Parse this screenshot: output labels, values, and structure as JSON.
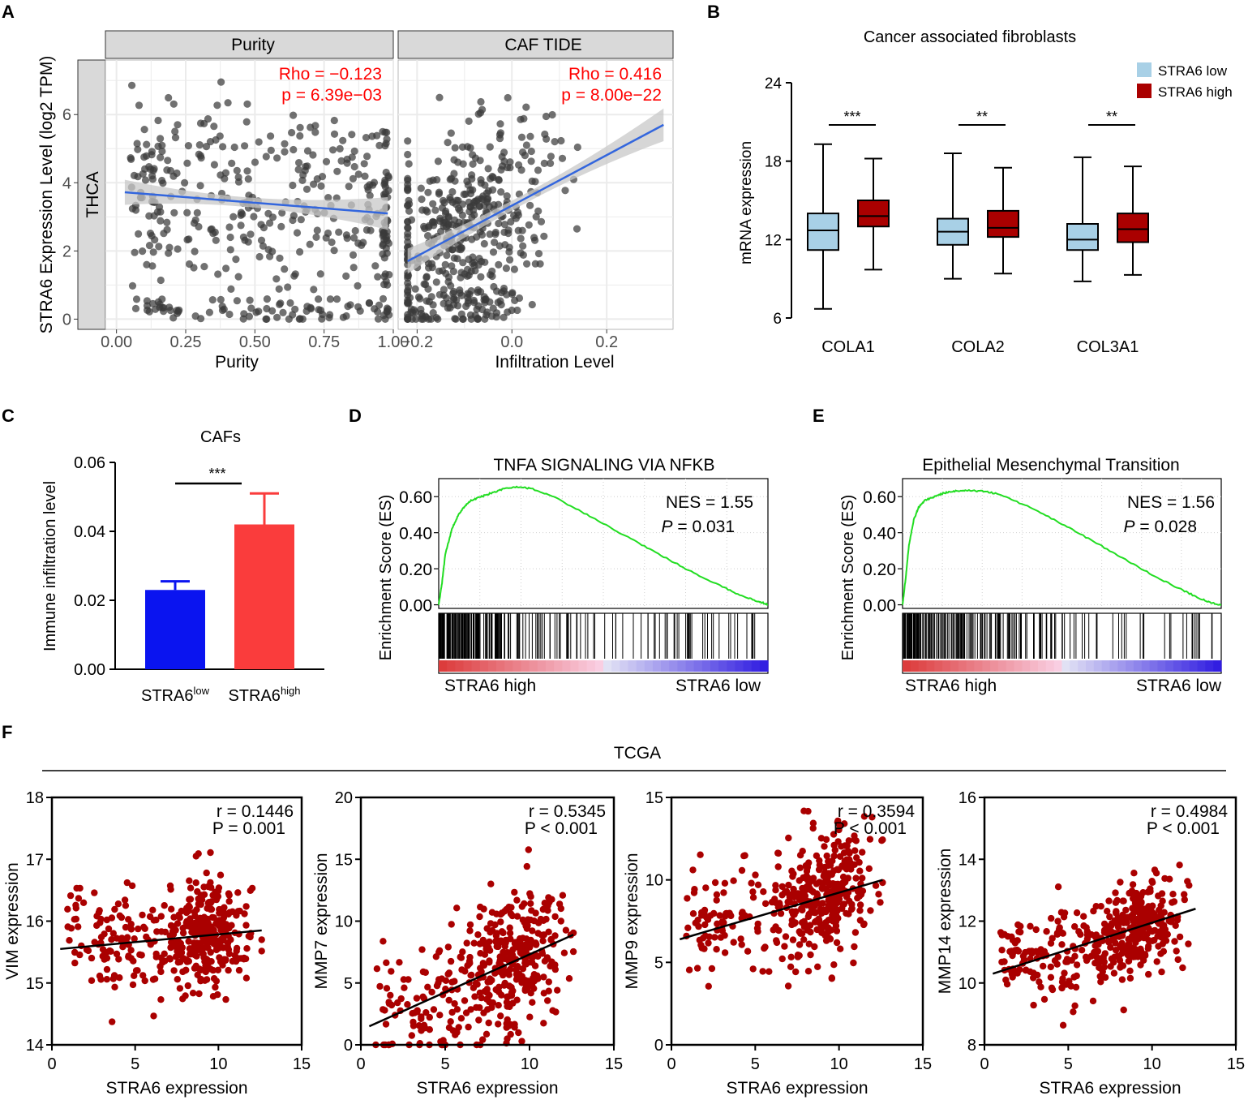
{
  "panel_labels": {
    "a": "A",
    "b": "B",
    "c": "C",
    "d": "D",
    "e": "E",
    "f": "F"
  },
  "colors": {
    "point": "#3a3a3a",
    "fit_line": "#3366dd",
    "ci_band": "#c8c8c8",
    "strip_bg": "#d9d9d9",
    "grid": "#ebebeb",
    "annot_red": "#ff0000",
    "box_low": "#a8d0e6",
    "box_high": "#aa0000",
    "bar_low": "#0a14f0",
    "bar_high": "#fa3c3c",
    "gsea_curve": "#22dd22",
    "f_point": "#aa0000"
  },
  "chart_data": [
    {
      "id": "A1",
      "type": "scatter",
      "strip_title": "Purity",
      "row_strip": "THCA",
      "ylabel": "STRA6 Expression Level (log2 TPM)",
      "xlabel": "Purity",
      "xlim": [
        -0.04,
        1.0
      ],
      "ylim": [
        -0.3,
        7.6
      ],
      "xticks": [
        0,
        0.25,
        0.5,
        0.75,
        1.0
      ],
      "xtick_labels": [
        "0.00",
        "0.25",
        "0.50",
        "0.75",
        "1.00"
      ],
      "yticks": [
        0,
        2,
        4,
        6
      ],
      "ytick_labels": [
        "0",
        "2",
        "4",
        "6"
      ],
      "annotation": [
        "Rho = −0.123",
        "p = 6.39e−03"
      ],
      "fit": {
        "x0": 0.03,
        "y0": 3.72,
        "x1": 0.98,
        "y1": 3.1
      },
      "gen": {
        "n": 430,
        "seed": 11,
        "kind": "purity"
      }
    },
    {
      "id": "A2",
      "type": "scatter",
      "strip_title": "CAF TIDE",
      "xlabel": "Infiltration Level",
      "xlim": [
        -0.24,
        0.34
      ],
      "ylim": [
        -0.3,
        7.6
      ],
      "xticks": [
        -0.2,
        0,
        0.2
      ],
      "xtick_labels": [
        "−0.2",
        "0.0",
        "0.2"
      ],
      "annotation": [
        "Rho = 0.416",
        "p = 8.00e−22"
      ],
      "fit": {
        "x0": -0.22,
        "y0": 1.7,
        "x1": 0.32,
        "y1": 5.7
      },
      "gen": {
        "n": 470,
        "seed": 23,
        "kind": "caf"
      }
    },
    {
      "id": "B",
      "type": "box",
      "title": "Cancer associated fibroblasts",
      "ylabel": "mRNA expression",
      "ylim": [
        6,
        24
      ],
      "yticks": [
        6,
        12,
        18,
        24
      ],
      "ytick_labels": [
        "6",
        "12",
        "18",
        "24"
      ],
      "categories": [
        "COLA1",
        "COLA2",
        "COL3A1"
      ],
      "legend": [
        "STRA6 low",
        "STRA6 high"
      ],
      "significance": [
        "***",
        "**",
        "**"
      ],
      "boxes": [
        {
          "low": {
            "min": 6.7,
            "q1": 11.2,
            "med": 12.7,
            "q3": 14.0,
            "max": 19.3
          },
          "high": {
            "min": 9.7,
            "q1": 13.0,
            "med": 13.8,
            "q3": 15.0,
            "max": 18.2
          }
        },
        {
          "low": {
            "min": 9.0,
            "q1": 11.6,
            "med": 12.6,
            "q3": 13.6,
            "max": 18.6
          },
          "high": {
            "min": 9.4,
            "q1": 12.2,
            "med": 12.9,
            "q3": 14.2,
            "max": 17.5
          }
        },
        {
          "low": {
            "min": 8.8,
            "q1": 11.2,
            "med": 12.0,
            "q3": 13.2,
            "max": 18.3
          },
          "high": {
            "min": 9.3,
            "q1": 11.8,
            "med": 12.8,
            "q3": 14.0,
            "max": 17.6
          }
        }
      ]
    },
    {
      "id": "C",
      "type": "bar",
      "title": "CAFs",
      "ylabel": "Immune infiltration level",
      "ylim": [
        0,
        0.06
      ],
      "yticks": [
        0,
        0.02,
        0.04,
        0.06
      ],
      "ytick_labels": [
        "0.00",
        "0.02",
        "0.04",
        "0.06"
      ],
      "categories": [
        {
          "base": "STRA6",
          "sup": "low"
        },
        {
          "base": "STRA6",
          "sup": "high"
        }
      ],
      "values": [
        0.023,
        0.042
      ],
      "errors": [
        0.0025,
        0.009
      ],
      "significance": "***"
    },
    {
      "id": "D",
      "type": "line",
      "title": "TNFA SIGNALING VIA NFKB",
      "ylabel": "Enrichment Score (ES)",
      "ylim": [
        -0.02,
        0.7
      ],
      "yticks": [
        0,
        0.2,
        0.4,
        0.6
      ],
      "ytick_labels": [
        "0.00",
        "0.20",
        "0.40",
        "0.60"
      ],
      "nes_label": "NES = 1.55",
      "p_label": "P",
      "p_value": " = 0.031",
      "left_label": "STRA6 high",
      "right_label": "STRA6 low",
      "curve": [
        [
          0,
          0
        ],
        [
          0.01,
          0.12
        ],
        [
          0.02,
          0.28
        ],
        [
          0.04,
          0.42
        ],
        [
          0.06,
          0.5
        ],
        [
          0.08,
          0.55
        ],
        [
          0.1,
          0.58
        ],
        [
          0.13,
          0.6
        ],
        [
          0.16,
          0.62
        ],
        [
          0.2,
          0.645
        ],
        [
          0.24,
          0.655
        ],
        [
          0.28,
          0.645
        ],
        [
          0.35,
          0.6
        ],
        [
          0.45,
          0.5
        ],
        [
          0.55,
          0.4
        ],
        [
          0.65,
          0.3
        ],
        [
          0.75,
          0.2
        ],
        [
          0.85,
          0.11
        ],
        [
          0.92,
          0.05
        ],
        [
          0.97,
          0.02
        ],
        [
          1.0,
          0.0
        ]
      ],
      "hits_seed": 5
    },
    {
      "id": "E",
      "type": "line",
      "title": "Epithelial Mesenchymal Transition",
      "ylabel": "Enrichment Score (ES)",
      "ylim": [
        -0.02,
        0.7
      ],
      "yticks": [
        0,
        0.2,
        0.4,
        0.6
      ],
      "ytick_labels": [
        "0.00",
        "0.20",
        "0.40",
        "0.60"
      ],
      "nes_label": "NES = 1.56",
      "p_label": "P",
      "p_value": " = 0.028",
      "left_label": "STRA6 high",
      "right_label": "STRA6 low",
      "curve": [
        [
          0,
          0
        ],
        [
          0.01,
          0.15
        ],
        [
          0.02,
          0.33
        ],
        [
          0.035,
          0.47
        ],
        [
          0.05,
          0.54
        ],
        [
          0.07,
          0.58
        ],
        [
          0.1,
          0.6
        ],
        [
          0.13,
          0.62
        ],
        [
          0.16,
          0.63
        ],
        [
          0.2,
          0.635
        ],
        [
          0.25,
          0.63
        ],
        [
          0.3,
          0.615
        ],
        [
          0.4,
          0.54
        ],
        [
          0.5,
          0.45
        ],
        [
          0.6,
          0.35
        ],
        [
          0.7,
          0.25
        ],
        [
          0.8,
          0.15
        ],
        [
          0.88,
          0.08
        ],
        [
          0.94,
          0.03
        ],
        [
          0.97,
          0.01
        ],
        [
          1.0,
          0.0
        ]
      ],
      "hits_seed": 9
    },
    {
      "id": "F1",
      "type": "scatter",
      "group_title": "TCGA",
      "xlabel": "STRA6 expression",
      "ylabel": "VIM expression",
      "xlim": [
        0,
        15
      ],
      "ylim": [
        14,
        18
      ],
      "xticks": [
        0,
        5,
        10,
        15
      ],
      "yticks": [
        14,
        15,
        16,
        17,
        18
      ],
      "r_label": "r = 0.1446",
      "p_label": "P = 0.001",
      "fit": {
        "x0": 0.5,
        "y0": 15.55,
        "x1": 12.6,
        "y1": 15.85
      },
      "gen": {
        "n": 420,
        "seed": 31,
        "slope": 0.025,
        "icpt": 15.55,
        "sd": 0.45
      }
    },
    {
      "id": "F2",
      "type": "scatter",
      "xlabel": "STRA6 expression",
      "ylabel": "MMP7 expression",
      "xlim": [
        0,
        15
      ],
      "ylim": [
        0,
        20
      ],
      "xticks": [
        0,
        5,
        10,
        15
      ],
      "yticks": [
        0,
        5,
        10,
        15,
        20
      ],
      "r_label": "r = 0.5345",
      "p_label": "P < 0.001",
      "fit": {
        "x0": 0.5,
        "y0": 1.5,
        "x1": 12.6,
        "y1": 8.9
      },
      "gen": {
        "n": 420,
        "seed": 37,
        "slope": 0.61,
        "icpt": 1.2,
        "sd": 2.8
      }
    },
    {
      "id": "F3",
      "type": "scatter",
      "xlabel": "STRA6 expression",
      "ylabel": "MMP9 expression",
      "xlim": [
        0,
        15
      ],
      "ylim": [
        0,
        15
      ],
      "xticks": [
        0,
        5,
        10,
        15
      ],
      "yticks": [
        0,
        5,
        10,
        15
      ],
      "r_label": "r = 0.3594",
      "p_label": "P < 0.001",
      "fit": {
        "x0": 0.5,
        "y0": 6.4,
        "x1": 12.6,
        "y1": 10.0
      },
      "gen": {
        "n": 420,
        "seed": 41,
        "slope": 0.3,
        "icpt": 6.3,
        "sd": 1.8
      }
    },
    {
      "id": "F4",
      "type": "scatter",
      "xlabel": "STRA6 expression",
      "ylabel": "MMP14 expression",
      "xlim": [
        0,
        15
      ],
      "ylim": [
        8,
        16
      ],
      "xticks": [
        0,
        5,
        10,
        15
      ],
      "yticks": [
        8,
        10,
        12,
        14,
        16
      ],
      "r_label": "r = 0.4984",
      "p_label": "P < 0.001",
      "fit": {
        "x0": 0.5,
        "y0": 10.3,
        "x1": 12.6,
        "y1": 12.4
      },
      "gen": {
        "n": 420,
        "seed": 47,
        "slope": 0.17,
        "icpt": 10.2,
        "sd": 0.75
      }
    }
  ]
}
